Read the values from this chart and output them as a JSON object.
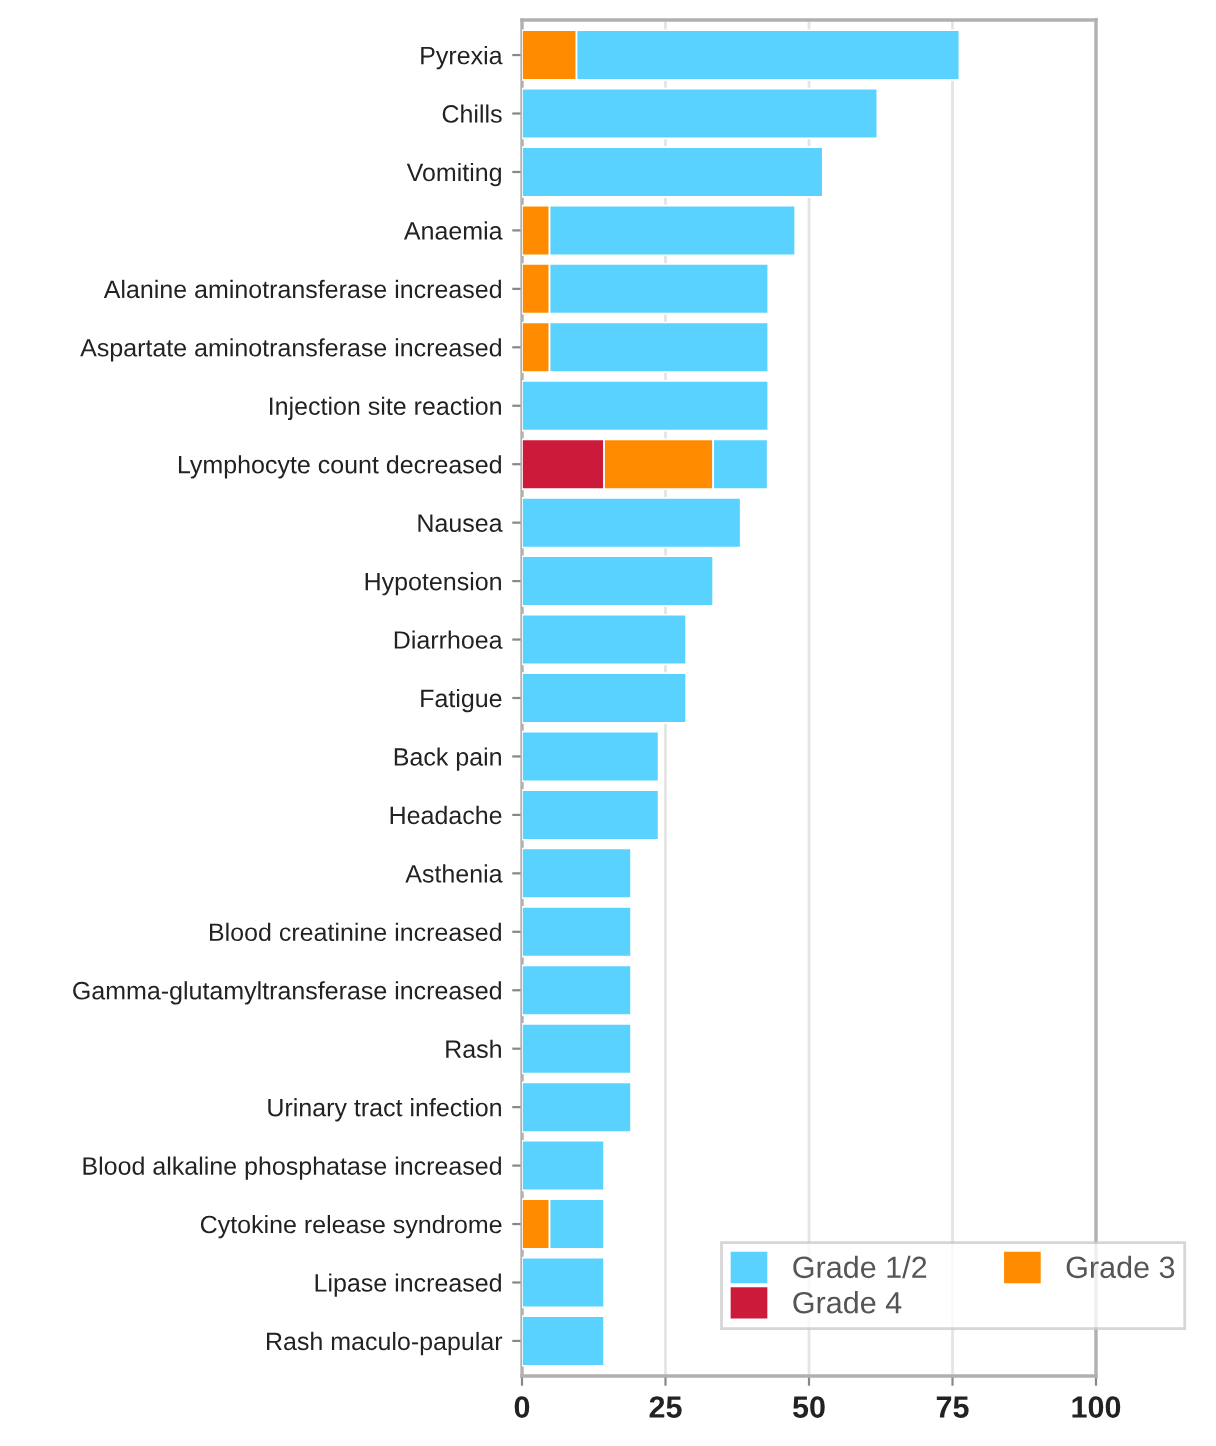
{
  "chart_data": {
    "type": "bar",
    "orientation": "horizontal",
    "stacked": true,
    "categories": [
      "Pyrexia",
      "Chills",
      "Vomiting",
      "Anaemia",
      "Alanine aminotransferase increased",
      "Aspartate aminotransferase increased",
      "Injection site reaction",
      "Lymphocyte count decreased",
      "Nausea",
      "Hypotension",
      "Diarrhoea",
      "Fatigue",
      "Back pain",
      "Headache",
      "Asthenia",
      "Blood creatinine increased",
      "Gamma-glutamyltransferase increased",
      "Rash",
      "Urinary tract infection",
      "Blood alkaline phosphatase increased",
      "Cytokine release syndrome",
      "Lipase increased",
      "Rash maculo-papular"
    ],
    "series": [
      {
        "name": "Grade 4",
        "color": "#cc1a3a",
        "values": [
          0,
          0,
          0,
          0,
          0,
          0,
          0,
          14.3,
          0,
          0,
          0,
          0,
          0,
          0,
          0,
          0,
          0,
          0,
          0,
          0,
          0,
          0,
          0
        ]
      },
      {
        "name": "Grade 3",
        "color": "#ff8c00",
        "values": [
          9.5,
          0,
          0,
          4.8,
          4.8,
          4.8,
          0,
          19.0,
          0,
          0,
          0,
          0,
          0,
          0,
          0,
          0,
          0,
          0,
          0,
          0,
          4.8,
          0,
          0
        ]
      },
      {
        "name": "Grade 1/2",
        "color": "#5ad2ff",
        "values": [
          66.7,
          61.9,
          52.4,
          42.8,
          38.1,
          38.1,
          42.9,
          9.5,
          38.1,
          33.3,
          28.6,
          28.6,
          23.8,
          23.8,
          19.0,
          19.0,
          19.0,
          19.0,
          19.0,
          14.3,
          9.5,
          14.3,
          14.3
        ]
      }
    ],
    "xlim": [
      0,
      100
    ],
    "xticks": [
      0,
      25,
      50,
      75,
      100
    ],
    "grid": "x",
    "legend": "bottom right"
  }
}
